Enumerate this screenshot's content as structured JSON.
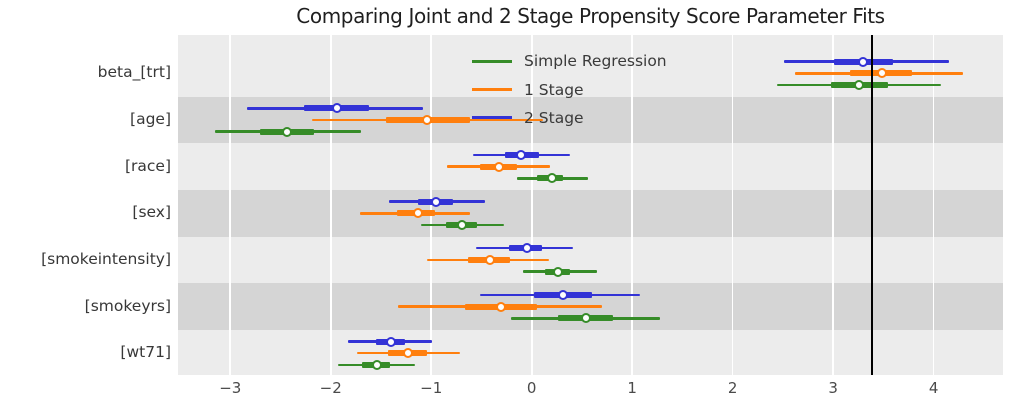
{
  "title": "Comparing Joint and 2 Stage Propensity Score Parameter Fits",
  "colors": {
    "background": "#FFFFFF",
    "plot_background": "#ECECEC",
    "band": "#D5D5D5",
    "gridline": "#FFFFFF",
    "reference_line": "#000000",
    "blue": "#3333D6",
    "orange": "#FF7F0E",
    "green": "#368C28"
  },
  "legend": {
    "items": [
      {
        "label": "Simple Regression",
        "color": "#368C28"
      },
      {
        "label": "1 Stage",
        "color": "#FF7F0E"
      },
      {
        "label": "2 Stage",
        "color": "#3333D6"
      }
    ]
  },
  "chart_data": {
    "type": "forest",
    "title": "Comparing Joint and 2 Stage Propensity Score Parameter Fits",
    "categories": [
      "beta_[trt]",
      "[age]",
      "[race]",
      "[sex]",
      "[smokeintensity]",
      "[smokeyrs]",
      "[wt71]"
    ],
    "xlim": [
      -3.52,
      4.69
    ],
    "reference_x": 3.39,
    "x_ticks": [
      {
        "value": -3,
        "label": "−3"
      },
      {
        "value": -2,
        "label": "−2"
      },
      {
        "value": -1,
        "label": "−1"
      },
      {
        "value": 0,
        "label": "0"
      },
      {
        "value": 1,
        "label": "1"
      },
      {
        "value": 2,
        "label": "2"
      },
      {
        "value": 3,
        "label": "3"
      },
      {
        "value": 4,
        "label": "4"
      }
    ],
    "series": [
      {
        "name": "2 Stage",
        "color": "#3333D6",
        "points": [
          {
            "est": 3.3,
            "inner": [
              3.01,
              3.6
            ],
            "outer": [
              2.51,
              4.15
            ]
          },
          {
            "est": -1.94,
            "inner": [
              -2.27,
              -1.62
            ],
            "outer": [
              -2.83,
              -1.08
            ]
          },
          {
            "est": -0.11,
            "inner": [
              -0.27,
              0.07
            ],
            "outer": [
              -0.58,
              0.38
            ]
          },
          {
            "est": -0.95,
            "inner": [
              -1.13,
              -0.78
            ],
            "outer": [
              -1.42,
              -0.46
            ]
          },
          {
            "est": -0.05,
            "inner": [
              -0.23,
              0.1
            ],
            "outer": [
              -0.55,
              0.41
            ]
          },
          {
            "est": 0.31,
            "inner": [
              0.02,
              0.6
            ],
            "outer": [
              -0.51,
              1.08
            ]
          },
          {
            "est": -1.4,
            "inner": [
              -1.55,
              -1.26
            ],
            "outer": [
              -1.83,
              -0.99
            ]
          }
        ]
      },
      {
        "name": "1 Stage",
        "color": "#FF7F0E",
        "points": [
          {
            "est": 3.49,
            "inner": [
              3.17,
              3.78
            ],
            "outer": [
              2.62,
              4.29
            ]
          },
          {
            "est": -1.04,
            "inner": [
              -1.45,
              -0.61
            ],
            "outer": [
              -2.19,
              0.11
            ]
          },
          {
            "est": -0.33,
            "inner": [
              -0.51,
              -0.15
            ],
            "outer": [
              -0.84,
              0.18
            ]
          },
          {
            "est": -1.13,
            "inner": [
              -1.34,
              -0.96
            ],
            "outer": [
              -1.71,
              -0.61
            ]
          },
          {
            "est": -0.42,
            "inner": [
              -0.63,
              -0.22
            ],
            "outer": [
              -1.04,
              0.17
            ]
          },
          {
            "est": -0.31,
            "inner": [
              -0.66,
              0.05
            ],
            "outer": [
              -1.33,
              0.7
            ]
          },
          {
            "est": -1.23,
            "inner": [
              -1.43,
              -1.04
            ],
            "outer": [
              -1.74,
              -0.71
            ]
          }
        ]
      },
      {
        "name": "Simple Regression",
        "color": "#368C28",
        "points": [
          {
            "est": 3.26,
            "inner": [
              2.98,
              3.55
            ],
            "outer": [
              2.44,
              4.07
            ]
          },
          {
            "est": -2.44,
            "inner": [
              -2.7,
              -2.17
            ],
            "outer": [
              -3.15,
              -1.7
            ]
          },
          {
            "est": 0.2,
            "inner": [
              0.05,
              0.31
            ],
            "outer": [
              -0.15,
              0.56
            ]
          },
          {
            "est": -0.69,
            "inner": [
              -0.85,
              -0.54
            ],
            "outer": [
              -1.1,
              -0.28
            ]
          },
          {
            "est": 0.26,
            "inner": [
              0.13,
              0.38
            ],
            "outer": [
              -0.09,
              0.65
            ]
          },
          {
            "est": 0.54,
            "inner": [
              0.26,
              0.81
            ],
            "outer": [
              -0.21,
              1.28
            ]
          },
          {
            "est": -1.54,
            "inner": [
              -1.69,
              -1.41
            ],
            "outer": [
              -1.93,
              -1.16
            ]
          }
        ]
      }
    ]
  }
}
